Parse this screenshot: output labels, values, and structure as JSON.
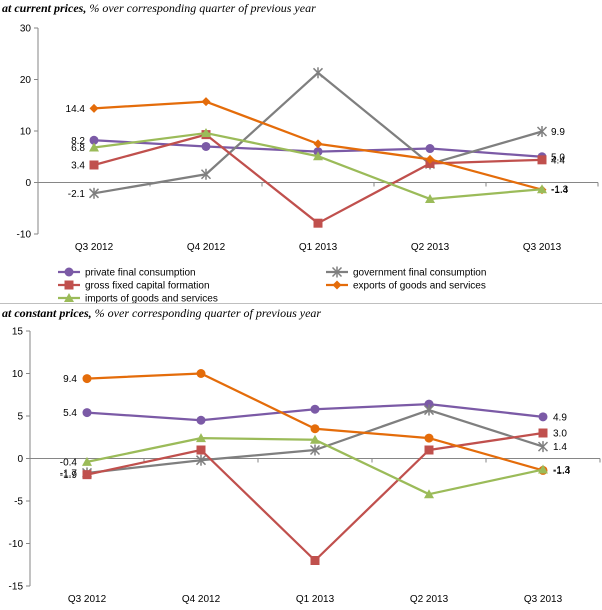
{
  "top": {
    "caption_bold": "at current prices,",
    "caption_rest": " % over corresponding quarter of previous year"
  },
  "bottom": {
    "caption_bold": "at constant prices,",
    "caption_rest": " % over corresponding quarter of previous year"
  },
  "colors": {
    "private": "#7B5AA6",
    "government": "#7F7F7F",
    "gfcf": "#C0504D",
    "exports": "#E46C0A",
    "imports": "#9BBB59"
  },
  "chart_data": [
    {
      "type": "line",
      "categories": [
        "Q3 2012",
        "Q4 2012",
        "Q1 2013",
        "Q2 2013",
        "Q3 2013"
      ],
      "ylim": [
        -10,
        30
      ],
      "yticks": [
        -10,
        0,
        10,
        20,
        30
      ],
      "grid": false,
      "legend_position": "bottom",
      "series": [
        {
          "name": "private final consumption",
          "key": "private",
          "marker": "circle",
          "values": [
            8.2,
            7.0,
            6.0,
            6.6,
            5.0
          ]
        },
        {
          "name": "government final consumption",
          "key": "government",
          "marker": "star",
          "values": [
            -2.1,
            1.6,
            21.3,
            3.6,
            9.9
          ]
        },
        {
          "name": "gross fixed capital formation",
          "key": "gfcf",
          "marker": "square",
          "values": [
            3.4,
            9.3,
            -7.9,
            3.7,
            4.4
          ]
        },
        {
          "name": "exports of goods and services",
          "key": "exports",
          "marker": "diamond",
          "values": [
            14.4,
            15.7,
            7.5,
            4.5,
            -1.4
          ]
        },
        {
          "name": "imports of goods and services",
          "key": "imports",
          "marker": "triangle",
          "values": [
            6.8,
            9.6,
            5.1,
            -3.2,
            -1.3
          ]
        }
      ],
      "data_labels": [
        {
          "series": "exports",
          "index": 0,
          "text": "14.4",
          "side": "left"
        },
        {
          "series": "private",
          "index": 0,
          "text": "8.2",
          "side": "left"
        },
        {
          "series": "imports",
          "index": 0,
          "text": "6.8",
          "side": "left"
        },
        {
          "series": "gfcf",
          "index": 0,
          "text": "3.4",
          "side": "left"
        },
        {
          "series": "government",
          "index": 0,
          "text": "-2.1",
          "side": "left"
        },
        {
          "series": "government",
          "index": 4,
          "text": "9.9",
          "side": "right"
        },
        {
          "series": "private",
          "index": 4,
          "text": "5.0",
          "side": "right"
        },
        {
          "series": "gfcf",
          "index": 4,
          "text": "4.4",
          "side": "right"
        },
        {
          "series": "imports",
          "index": 4,
          "text": "-1.3",
          "side": "right"
        },
        {
          "series": "exports",
          "index": 4,
          "text": "-1.4",
          "side": "right"
        }
      ]
    },
    {
      "type": "line",
      "categories": [
        "Q3 2012",
        "Q4 2012",
        "Q1 2013",
        "Q2 2013",
        "Q3 2013"
      ],
      "ylim": [
        -15,
        15
      ],
      "yticks": [
        -15,
        -10,
        -5,
        0,
        5,
        10,
        15
      ],
      "grid": false,
      "legend_position": "none",
      "series": [
        {
          "name": "private final consumption",
          "key": "private",
          "marker": "circle",
          "values": [
            5.4,
            4.5,
            5.8,
            6.4,
            4.9
          ]
        },
        {
          "name": "government final consumption",
          "key": "government",
          "marker": "star",
          "values": [
            -1.7,
            -0.2,
            1.0,
            5.7,
            1.4
          ]
        },
        {
          "name": "gross fixed capital formation",
          "key": "gfcf",
          "marker": "square",
          "values": [
            -1.9,
            1.0,
            -12.0,
            1.0,
            3.0
          ]
        },
        {
          "name": "exports of goods and services",
          "key": "exports",
          "marker": "circle",
          "values": [
            9.4,
            10.0,
            3.5,
            2.4,
            -1.4
          ]
        },
        {
          "name": "imports of goods and services",
          "key": "imports",
          "marker": "triangle",
          "values": [
            -0.4,
            2.4,
            2.2,
            -4.2,
            -1.3
          ]
        }
      ],
      "data_labels": [
        {
          "series": "exports",
          "index": 0,
          "text": "9.4",
          "side": "left"
        },
        {
          "series": "private",
          "index": 0,
          "text": "5.4",
          "side": "left"
        },
        {
          "series": "imports",
          "index": 0,
          "text": "-0.4",
          "side": "left"
        },
        {
          "series": "government",
          "index": 0,
          "text": "-1.7",
          "side": "left"
        },
        {
          "series": "gfcf",
          "index": 0,
          "text": "-1.9",
          "side": "left"
        },
        {
          "series": "private",
          "index": 4,
          "text": "4.9",
          "side": "right"
        },
        {
          "series": "gfcf",
          "index": 4,
          "text": "3.0",
          "side": "right"
        },
        {
          "series": "government",
          "index": 4,
          "text": "1.4",
          "side": "right"
        },
        {
          "series": "imports",
          "index": 4,
          "text": "-1.3",
          "side": "right"
        },
        {
          "series": "exports",
          "index": 4,
          "text": "-1.4",
          "side": "right"
        }
      ]
    }
  ]
}
